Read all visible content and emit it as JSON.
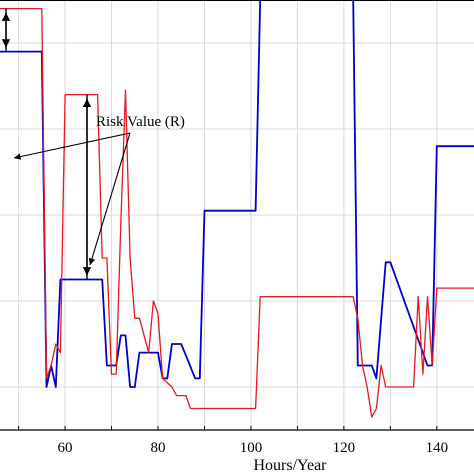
{
  "chart_data": {
    "type": "line",
    "title": "",
    "xlabel": "Hours/Year",
    "ylabel": "",
    "xlim": [
      46,
      148
    ],
    "ylim": [
      0,
      10
    ],
    "xticks": [
      "60",
      "80",
      "100",
      "120",
      "140"
    ],
    "grid": true,
    "annotation": "Risk Value (R)",
    "series": [
      {
        "color": "#0000cc",
        "x": [
          46,
          55,
          56,
          57,
          58,
          59,
          68,
          69,
          70,
          71,
          72,
          73,
          74,
          75,
          76,
          77,
          80,
          81,
          82,
          83,
          84,
          85,
          88,
          89,
          90,
          101,
          102,
          122,
          123,
          124,
          126,
          127,
          129,
          130,
          138,
          139,
          140,
          148
        ],
        "y": [
          8.8,
          8.8,
          1.0,
          1.5,
          1.0,
          3.5,
          3.5,
          1.5,
          1.5,
          1.5,
          2.2,
          2.2,
          1.0,
          1.0,
          1.8,
          1.8,
          1.8,
          1.2,
          1.2,
          2.0,
          2.0,
          2.0,
          1.2,
          1.2,
          5.1,
          5.1,
          10.0,
          10.0,
          1.5,
          1.5,
          1.5,
          1.2,
          3.9,
          3.9,
          1.5,
          1.5,
          6.6,
          6.6
        ]
      },
      {
        "color": "#e41a1c",
        "x": [
          46,
          55,
          56,
          57,
          58,
          59,
          60,
          66,
          67,
          68,
          69,
          70,
          71,
          72,
          73,
          74,
          75,
          76,
          78,
          79,
          80,
          81,
          83,
          84,
          86,
          87,
          88,
          90,
          101,
          102,
          122,
          123,
          124,
          125,
          126,
          127,
          128,
          129,
          135,
          136,
          137,
          138,
          139,
          140,
          148
        ],
        "y": [
          9.8,
          9.8,
          1.2,
          1.5,
          2.0,
          1.8,
          7.8,
          7.8,
          7.8,
          4.0,
          4.0,
          1.3,
          1.3,
          4.8,
          7.9,
          4.0,
          2.6,
          2.6,
          1.8,
          3.0,
          2.7,
          1.2,
          1.0,
          0.8,
          0.8,
          0.5,
          0.5,
          0.5,
          0.5,
          3.1,
          3.1,
          2.6,
          1.5,
          1.0,
          0.3,
          0.5,
          1.5,
          1.0,
          1.0,
          3.1,
          1.3,
          3.1,
          1.5,
          3.3,
          3.3
        ]
      }
    ]
  }
}
